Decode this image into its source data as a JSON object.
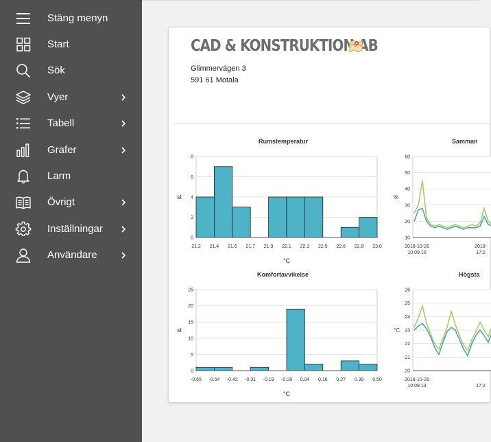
{
  "sidebar": {
    "items": [
      {
        "label": "Stäng menyn",
        "icon": "hamburger-icon",
        "has_submenu": false
      },
      {
        "label": "Start",
        "icon": "grid-icon",
        "has_submenu": false
      },
      {
        "label": "Sök",
        "icon": "search-icon",
        "has_submenu": false
      },
      {
        "label": "Vyer",
        "icon": "layers-icon",
        "has_submenu": true
      },
      {
        "label": "Tabell",
        "icon": "list-icon",
        "has_submenu": true
      },
      {
        "label": "Grafer",
        "icon": "bar-chart-icon",
        "has_submenu": true
      },
      {
        "label": "Larm",
        "icon": "bell-icon",
        "has_submenu": false
      },
      {
        "label": "Övrigt",
        "icon": "book-icon",
        "has_submenu": true
      },
      {
        "label": "Inställningar",
        "icon": "gear-icon",
        "has_submenu": true
      },
      {
        "label": "Användare",
        "icon": "user-icon",
        "has_submenu": true
      }
    ]
  },
  "company": {
    "name": "CAD & KONSTRUKTION AB",
    "street": "Glimmervägen 3",
    "city": "591 61  Motala"
  },
  "colors": {
    "sidebar_bg": "#4e514d",
    "bar_fill": "#4fb3c8",
    "line_teal": "#4fa3a8",
    "line_green": "#a8cc6a"
  },
  "chart_data": [
    {
      "type": "bar",
      "title": "Rumstemperatur",
      "xlabel": "°C",
      "ylabel": "st",
      "x_ticks": [
        "21.2",
        "21.4",
        "21.6",
        "21.7",
        "21.9",
        "22.1",
        "22.3",
        "22.5",
        "22.6",
        "22.8",
        "23.0"
      ],
      "y_ticks": [
        "0",
        "2",
        "4",
        "6",
        "8"
      ],
      "ylim": [
        0,
        8
      ],
      "values": [
        4,
        7,
        3,
        0,
        4,
        4,
        4,
        0,
        1,
        2
      ],
      "grid": true
    },
    {
      "type": "bar",
      "title": "Komfortavvikelse",
      "xlabel": "°C",
      "ylabel": "st",
      "x_ticks": [
        "-0.65",
        "-0.54",
        "-0.42",
        "-0.31",
        "-0.19",
        "-0.08",
        "0.04",
        "0.16",
        "0.27",
        "0.39",
        "0.50"
      ],
      "y_ticks": [
        "0",
        "5",
        "10",
        "15",
        "20",
        "25"
      ],
      "ylim": [
        0,
        25
      ],
      "values": [
        1,
        1,
        0,
        1,
        0,
        19,
        2,
        0,
        3,
        2
      ],
      "grid": true
    },
    {
      "type": "line",
      "title": "Samman",
      "ylabel": "%",
      "y_ticks": [
        "10",
        "20",
        "30",
        "40",
        "50",
        "60"
      ],
      "ylim": [
        10,
        60
      ],
      "x_ticks": [
        {
          "date": "2018-10-26",
          "time": "10:09:10"
        },
        {
          "date": "2018-",
          "time": "17:2"
        }
      ],
      "series": [
        {
          "color": "#a8cc6a",
          "values": [
            25,
            30,
            45,
            22,
            18,
            17,
            18,
            17,
            16,
            17,
            18,
            17,
            16,
            17,
            18,
            17,
            19,
            28,
            20,
            18
          ]
        },
        {
          "color": "#4fa3a8",
          "values": [
            20,
            27,
            28,
            20,
            17,
            16,
            17,
            16,
            15,
            16,
            17,
            16,
            15,
            16,
            16,
            16,
            17,
            23,
            18,
            17
          ]
        }
      ],
      "grid": true
    },
    {
      "type": "line",
      "title": "Högsta",
      "ylabel": "°C",
      "y_ticks": [
        "20",
        "21",
        "22",
        "23",
        "24",
        "25",
        "26"
      ],
      "ylim": [
        20,
        26
      ],
      "x_ticks": [
        {
          "date": "2018-10-26",
          "time": "10:09:13"
        },
        {
          "date": "",
          "time": "17:2"
        }
      ],
      "series": [
        {
          "color": "#a8cc6a",
          "values": [
            23.2,
            23.9,
            24.8,
            23.5,
            22.7,
            22.0,
            21.6,
            22.4,
            23.2,
            24.4,
            23.4,
            22.6,
            21.9,
            21.5,
            22.3,
            22.9,
            23.6,
            23.0,
            22.5,
            23.4
          ]
        },
        {
          "color": "#4fa3a8",
          "values": [
            23.0,
            23.3,
            23.5,
            23.1,
            22.5,
            21.7,
            21.2,
            22.1,
            22.9,
            23.2,
            23.0,
            22.3,
            21.6,
            21.1,
            22.0,
            22.6,
            23.0,
            22.6,
            22.1,
            22.9
          ]
        }
      ],
      "grid": true
    }
  ]
}
